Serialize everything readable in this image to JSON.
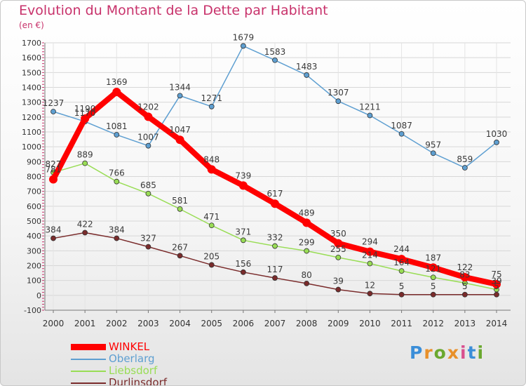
{
  "header": {
    "title": "Evolution du Montant de la Dette par Habitant",
    "subtitle": "(en €)"
  },
  "logo": {
    "text": "Proxiti",
    "colors": [
      "#3b8ed8",
      "#e8902a",
      "#6aa82f",
      "#e8902a",
      "#d94f8e",
      "#3b8ed8",
      "#6aa82f"
    ]
  },
  "colors": {
    "title": "#c8326b",
    "axis_text": "#333333",
    "grid": "#d7d7d7",
    "axis_ticks": "#c8326b"
  },
  "chart_data": {
    "type": "line",
    "title": "Evolution du Montant de la Dette par Habitant",
    "subtitle": "(en €)",
    "x": [
      "2000",
      "2001",
      "2002",
      "2003",
      "2004",
      "2005",
      "2006",
      "2007",
      "2008",
      "2009",
      "2010",
      "2011",
      "2012",
      "2013",
      "2014"
    ],
    "ylim": [
      -100,
      1700
    ],
    "yticks": [
      -100,
      0,
      100,
      200,
      300,
      400,
      500,
      600,
      700,
      800,
      900,
      1000,
      1100,
      1200,
      1300,
      1400,
      1500,
      1600,
      1700
    ],
    "grid": true,
    "legend_position": "bottom-left",
    "series": [
      {
        "name": "WINKEL",
        "color": "#ff0000",
        "values": [
          781,
          1190,
          1369,
          1202,
          1047,
          848,
          739,
          617,
          489,
          350,
          294,
          244,
          187,
          122,
          75
        ]
      },
      {
        "name": "Oberlarg",
        "color": "#5e9fd1",
        "values": [
          1237,
          1170,
          1081,
          1007,
          1344,
          1271,
          1679,
          1583,
          1483,
          1307,
          1211,
          1087,
          957,
          859,
          1030
        ]
      },
      {
        "name": "Liebsdorf",
        "color": "#99dd55",
        "values": [
          827,
          889,
          766,
          685,
          581,
          471,
          371,
          332,
          299,
          255,
          214,
          164,
          121,
          83,
          39
        ]
      },
      {
        "name": "Durlinsdorf",
        "color": "#7a2b2b",
        "values": [
          384,
          422,
          384,
          327,
          267,
          205,
          156,
          117,
          80,
          39,
          12,
          5,
          5,
          5,
          5
        ]
      }
    ]
  }
}
